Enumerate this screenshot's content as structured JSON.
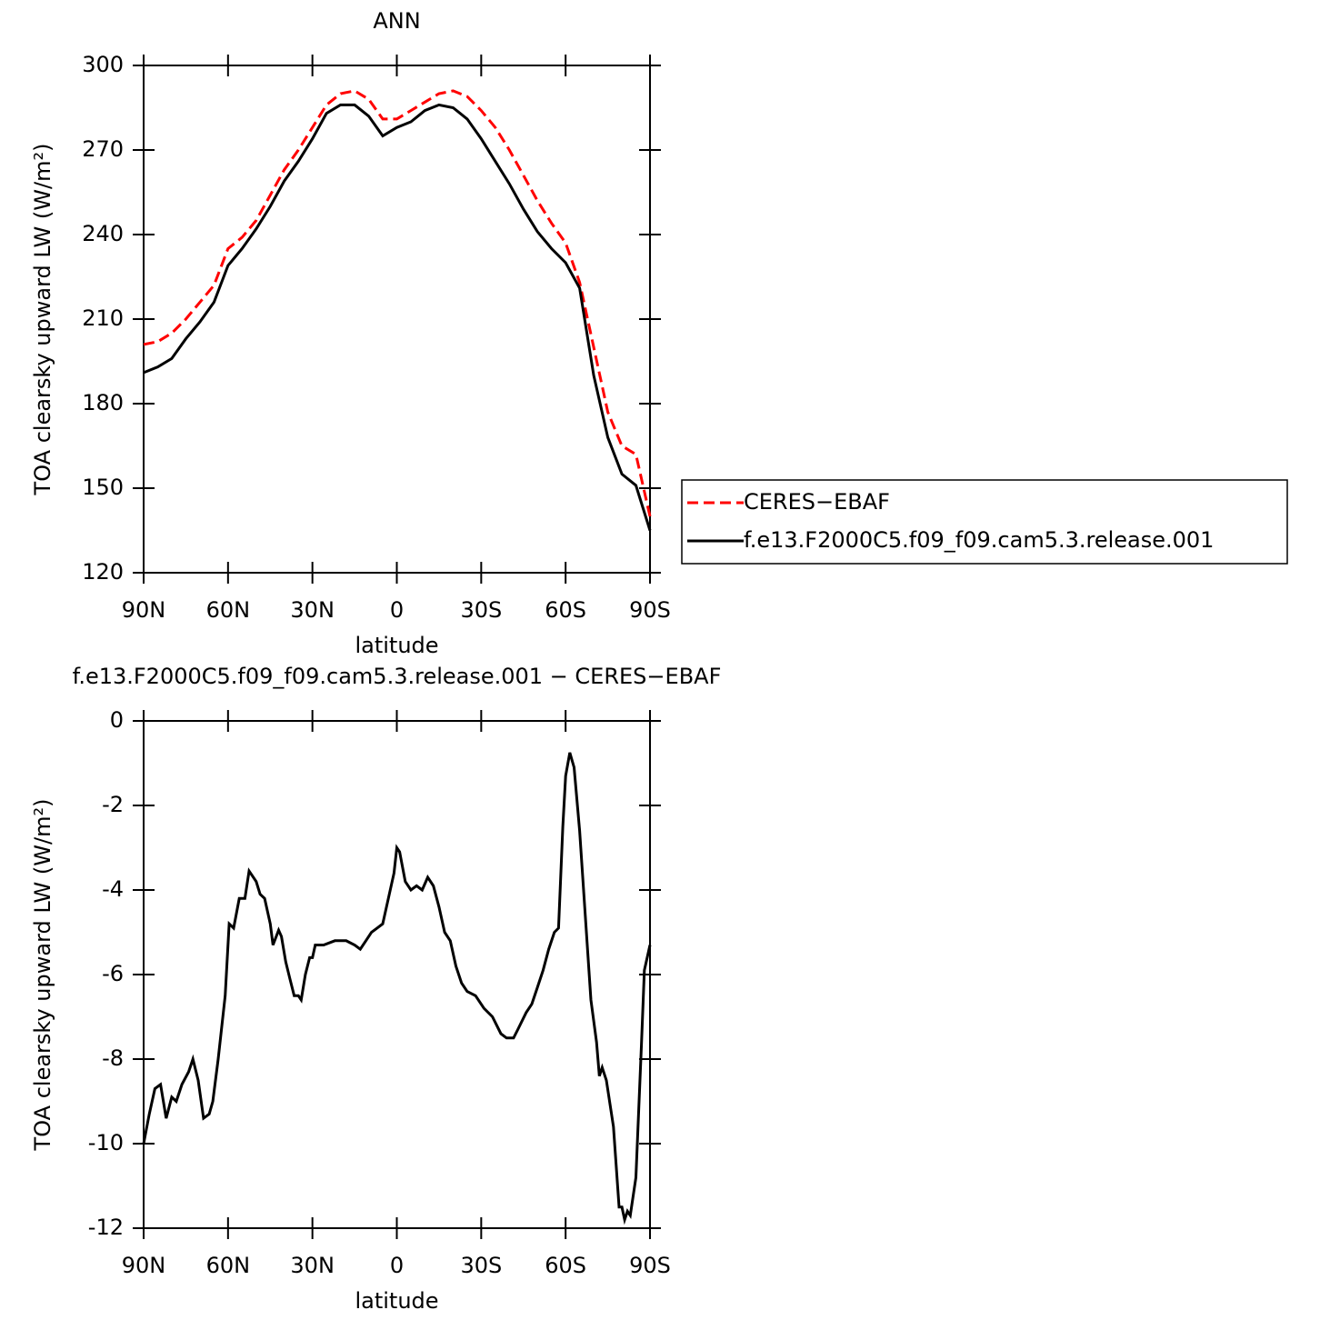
{
  "chart_data": [
    {
      "type": "line",
      "title": "ANN",
      "xlabel": "latitude",
      "ylabel": "TOA clearsky upward LW (W/m²)",
      "x": [
        90,
        85,
        80,
        75,
        70,
        65,
        60,
        55,
        50,
        45,
        40,
        35,
        30,
        25,
        20,
        15,
        10,
        5,
        0,
        -5,
        -10,
        -15,
        -20,
        -25,
        -30,
        -35,
        -40,
        -45,
        -50,
        -55,
        -60,
        -65,
        -70,
        -75,
        -80,
        -85,
        -90
      ],
      "series": [
        {
          "name": "CERES−EBAF",
          "color": "#ff0000",
          "dashed": true,
          "values": [
            201,
            202,
            205,
            210,
            216,
            222,
            235,
            239,
            245,
            254,
            263,
            270,
            278,
            286,
            290,
            291,
            288,
            281,
            281,
            284,
            287,
            290,
            291,
            289,
            284,
            278,
            270,
            261,
            252,
            244,
            237,
            223,
            200,
            177,
            165,
            162,
            140
          ]
        },
        {
          "name": "f.e13.F2000C5.f09_f09.cam5.3.release.001",
          "color": "#000000",
          "dashed": false,
          "values": [
            191,
            193,
            196,
            203,
            209,
            216,
            229,
            235,
            242,
            250,
            259,
            266,
            274,
            283,
            286,
            286,
            282,
            275,
            278,
            280,
            284,
            286,
            285,
            281,
            274,
            266,
            258,
            249,
            241,
            235,
            230,
            221,
            190,
            168,
            155,
            151,
            135
          ]
        }
      ],
      "xlim": [
        90,
        -90
      ],
      "xticks": [
        {
          "value": 90,
          "label": "90N"
        },
        {
          "value": 60,
          "label": "60N"
        },
        {
          "value": 30,
          "label": "30N"
        },
        0,
        {
          "value": -30,
          "label": "30S"
        },
        {
          "value": -60,
          "label": "60S"
        },
        {
          "value": -90,
          "label": "90S"
        }
      ],
      "ylim": [
        120,
        300
      ],
      "yticks": [
        120,
        150,
        180,
        210,
        240,
        270,
        300
      ],
      "legend": "right"
    },
    {
      "type": "line",
      "title": "f.e13.F2000C5.f09_f09.cam5.3.release.001 − CERES−EBAF",
      "xlabel": "latitude",
      "ylabel": "TOA clearsky upward LW (W/m²)",
      "x": [
        90,
        88,
        86,
        84,
        82,
        80,
        78.4,
        76.4,
        74,
        72.5,
        70.6,
        68.7,
        66.7,
        65.4,
        63.5,
        61,
        59.6,
        58,
        56,
        54,
        52.5,
        50,
        48.6,
        47,
        45,
        44,
        42,
        41,
        39.5,
        38,
        36.5,
        35,
        34,
        32.5,
        31,
        30,
        29,
        26,
        22,
        18,
        15,
        13,
        11,
        9,
        7,
        5,
        3,
        1,
        0,
        -1,
        -3,
        -5,
        -7,
        -9,
        -11,
        -13,
        -15,
        -17,
        -19,
        -21,
        -23,
        -25,
        -28,
        -31,
        -34,
        -37,
        -39,
        -41.5,
        -43,
        -46,
        -48,
        -50,
        -52,
        -54,
        -56,
        -57.5,
        -59,
        -60,
        -61.5,
        -63,
        -65,
        -67,
        -69,
        -71,
        -72,
        -73,
        -74.5,
        -77,
        -79,
        -80,
        -81,
        -82,
        -83,
        -85,
        -87,
        -88,
        -90
      ],
      "series": [
        {
          "name": "difference",
          "color": "#000000",
          "dashed": false,
          "values": [
            -10,
            -9.3,
            -8.7,
            -8.6,
            -9.4,
            -8.9,
            -9.0,
            -8.6,
            -8.3,
            -8.0,
            -8.5,
            -9.4,
            -9.3,
            -9.0,
            -8.0,
            -6.5,
            -4.8,
            -4.9,
            -4.2,
            -4.2,
            -3.55,
            -3.8,
            -4.1,
            -4.2,
            -4.8,
            -5.3,
            -4.95,
            -5.1,
            -5.7,
            -6.1,
            -6.5,
            -6.5,
            -6.6,
            -6.0,
            -5.6,
            -5.6,
            -5.3,
            -5.3,
            -5.2,
            -5.2,
            -5.3,
            -5.4,
            -5.2,
            -5.0,
            -4.9,
            -4.8,
            -4.2,
            -3.6,
            -3.0,
            -3.1,
            -3.8,
            -4.0,
            -3.9,
            -4.0,
            -3.7,
            -3.9,
            -4.4,
            -5.0,
            -5.2,
            -5.8,
            -6.2,
            -6.4,
            -6.5,
            -6.8,
            -7.0,
            -7.4,
            -7.5,
            -7.5,
            -7.3,
            -6.9,
            -6.7,
            -6.3,
            -5.9,
            -5.4,
            -5.0,
            -4.9,
            -2.5,
            -1.3,
            -0.75,
            -1.1,
            -2.6,
            -4.6,
            -6.6,
            -7.6,
            -8.4,
            -8.2,
            -8.5,
            -9.6,
            -11.5,
            -11.5,
            -11.8,
            -11.6,
            -11.7,
            -10.8,
            -7.6,
            -5.9,
            -5.3
          ]
        }
      ],
      "xlim": [
        90,
        -90
      ],
      "xticks": [
        {
          "value": 90,
          "label": "90N"
        },
        {
          "value": 60,
          "label": "60N"
        },
        {
          "value": 30,
          "label": "30N"
        },
        0,
        {
          "value": -30,
          "label": "30S"
        },
        {
          "value": -60,
          "label": "60S"
        },
        {
          "value": -90,
          "label": "90S"
        }
      ],
      "ylim": [
        -12,
        0
      ],
      "yticks": [
        -12,
        -10,
        -8,
        -6,
        -4,
        -2,
        0
      ]
    }
  ]
}
